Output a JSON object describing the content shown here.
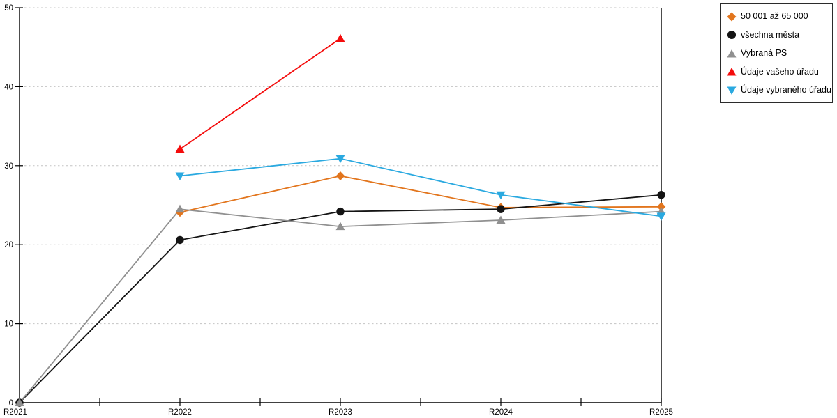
{
  "chart_data": {
    "type": "line",
    "title": "",
    "xlabel": "",
    "ylabel": "",
    "categories": [
      "R2021",
      "R2022",
      "R2023",
      "R2024",
      "R2025"
    ],
    "series": [
      {
        "name": "50 001 až 65 000",
        "color": "#E2751D",
        "marker": "diamond",
        "values": [
          null,
          24.1,
          28.7,
          24.7,
          24.8
        ]
      },
      {
        "name": "všechna města",
        "color": "#141414",
        "marker": "circle",
        "values": [
          0,
          20.6,
          24.2,
          24.5,
          26.3
        ]
      },
      {
        "name": "Vybraná PS",
        "color": "#909090",
        "marker": "triangle-up",
        "values": [
          0,
          24.5,
          22.3,
          23.1,
          24.2
        ]
      },
      {
        "name": "Údaje vašeho úřadu",
        "color": "#F40C0C",
        "marker": "triangle-up",
        "values": [
          null,
          32.1,
          46.1,
          null,
          null
        ]
      },
      {
        "name": "Údaje vybraného úřadu",
        "color": "#2AA9E0",
        "marker": "triangle-down",
        "values": [
          null,
          28.7,
          30.9,
          26.3,
          23.6
        ]
      }
    ],
    "ylim": [
      0,
      50
    ],
    "yticks": [
      0,
      10,
      20,
      30,
      40,
      50
    ],
    "grid": "horizontal dashed lines at each y tick",
    "legend_position": "top-right",
    "colors": {
      "axis": "#000000",
      "grid": "#C4C4C4",
      "background": "#FFFFFF"
    }
  }
}
